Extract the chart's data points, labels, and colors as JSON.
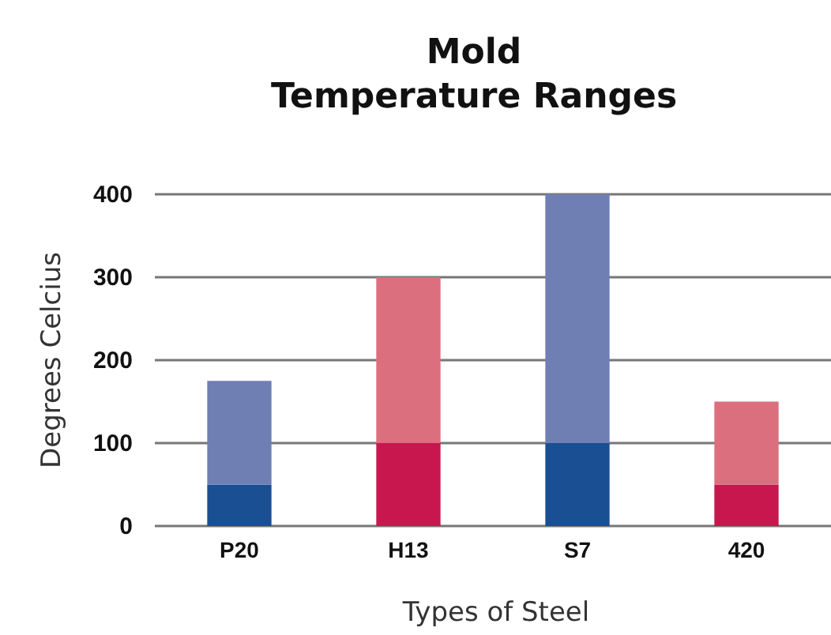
{
  "chart_data": {
    "type": "bar",
    "title": "Mold\nTemperature Ranges",
    "xlabel": "Types of Steel",
    "ylabel": "Degrees Celcius",
    "categories": [
      "P20",
      "H13",
      "S7",
      "420"
    ],
    "stacked": true,
    "series": [
      {
        "colors": [
          "#1b4f93",
          "#c8174f",
          "#1b4f93",
          "#c8174f"
        ],
        "values": [
          50,
          100,
          100,
          50
        ]
      },
      {
        "colors": [
          "#6f7fb4",
          "#dc6f7e",
          "#6f7fb4",
          "#dc6f7e"
        ],
        "values": [
          125,
          200,
          300,
          100
        ]
      }
    ],
    "ylim": [
      0,
      400
    ],
    "yticks": [
      0,
      100,
      200,
      300,
      400
    ],
    "grid": "y"
  }
}
